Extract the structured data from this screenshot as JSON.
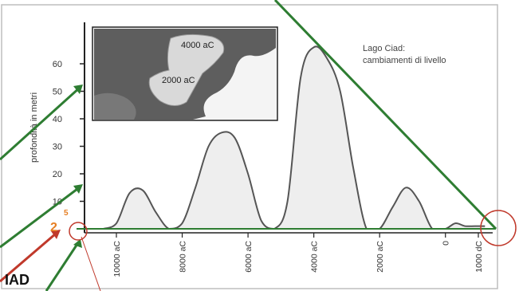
{
  "chart_data": {
    "type": "area",
    "title": "Lago Ciad:\ncambiamenti di livello",
    "ylabel": "profondità in metri",
    "xlabel": "",
    "yticks": [
      "10",
      "20",
      "30",
      "40",
      "50",
      "60"
    ],
    "xticks": [
      "10000 aC",
      "8000 aC",
      "6000 aC",
      "4000 aC",
      "2000 aC",
      "0",
      "1000 dC"
    ],
    "ylim": [
      0,
      70
    ],
    "series": [
      {
        "x": [
          "10400 aC",
          "10000 aC",
          "9600 aC",
          "9200 aC",
          "8800 aC",
          "8400 aC",
          "8000 aC",
          "7600 aC",
          "7200 aC",
          "6800 aC",
          "6400 aC",
          "6000 aC",
          "5600 aC",
          "5200 aC",
          "4800 aC",
          "4400 aC",
          "4000 aC",
          "3600 aC",
          "3200 aC",
          "2800 aC",
          "2400 aC",
          "2000 aC",
          "1600 aC",
          "1200 aC",
          "800 aC",
          "400 aC",
          "0",
          "300 dC",
          "600 dC",
          "900 dC",
          "1200 dC"
        ],
        "values": [
          0,
          2,
          13,
          14,
          6,
          0,
          2,
          15,
          30,
          35,
          33,
          20,
          3,
          0,
          10,
          55,
          66,
          62,
          50,
          22,
          0,
          0,
          8,
          15,
          10,
          0,
          0,
          2,
          1,
          1,
          1
        ]
      }
    ],
    "inset_labels": [
      "4000 aC",
      "2000 aC"
    ],
    "annotations": {
      "orange_small": "5",
      "orange_big": "2",
      "bottom_left_text": "IAD"
    }
  }
}
